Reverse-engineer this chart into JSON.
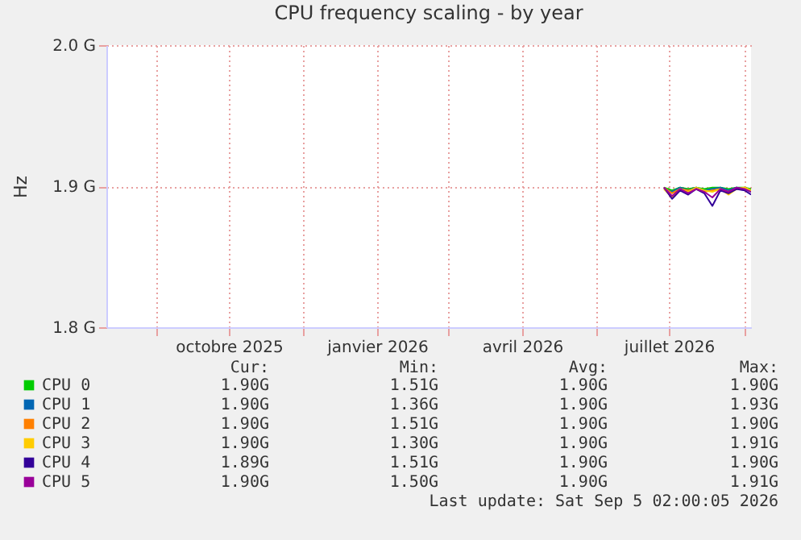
{
  "chart_data": {
    "type": "line",
    "title": "CPU frequency scaling - by year",
    "ylabel": "Hz",
    "x": [
      "2026-07-13",
      "2026-07-18",
      "2026-07-23",
      "2026-07-28",
      "2026-08-02",
      "2026-08-07",
      "2026-08-12",
      "2026-08-17",
      "2026-08-22",
      "2026-08-27",
      "2026-09-01",
      "2026-09-05"
    ],
    "xlim": [
      "2025-08-01",
      "2026-09-05"
    ],
    "xticks": [
      {
        "value": "2025-09-01",
        "label": null
      },
      {
        "value": "2025-10-16",
        "label": "octobre 2025"
      },
      {
        "value": "2025-12-01",
        "label": null
      },
      {
        "value": "2026-01-16",
        "label": "janvier 2026"
      },
      {
        "value": "2026-03-01",
        "label": null
      },
      {
        "value": "2026-04-16",
        "label": "avril 2026"
      },
      {
        "value": "2026-06-01",
        "label": null
      },
      {
        "value": "2026-07-16",
        "label": "juillet 2026"
      },
      {
        "value": "2026-09-01",
        "label": null
      }
    ],
    "ylim": [
      1.8,
      2.0
    ],
    "yticks": [
      {
        "value": 1.8,
        "label": "1.8 G"
      },
      {
        "value": 1.9,
        "label": "1.9 G"
      },
      {
        "value": 2.0,
        "label": "2.0 G"
      }
    ],
    "grid": true,
    "legend": "bottom",
    "series": [
      {
        "name": "CPU 0",
        "color": "#00cc00",
        "values": [
          1.899,
          1.897,
          1.899,
          1.898,
          1.899,
          1.898,
          1.899,
          1.899,
          1.898,
          1.899,
          1.899,
          1.898
        ]
      },
      {
        "name": "CPU 1",
        "color": "#0066b3",
        "values": [
          1.898,
          1.896,
          1.899,
          1.897,
          1.899,
          1.897,
          1.898,
          1.899,
          1.897,
          1.899,
          1.898,
          1.896
        ]
      },
      {
        "name": "CPU 2",
        "color": "#ff8000",
        "values": [
          1.899,
          1.895,
          1.898,
          1.897,
          1.898,
          1.896,
          1.897,
          1.898,
          1.896,
          1.898,
          1.899,
          1.897
        ]
      },
      {
        "name": "CPU 3",
        "color": "#ffcc00",
        "values": [
          1.898,
          1.892,
          1.898,
          1.896,
          1.899,
          1.897,
          1.896,
          1.898,
          1.894,
          1.898,
          1.899,
          1.897
        ]
      },
      {
        "name": "CPU 4",
        "color": "#330099",
        "values": [
          1.899,
          1.891,
          1.897,
          1.894,
          1.898,
          1.895,
          1.886,
          1.897,
          1.895,
          1.898,
          1.897,
          1.894
        ]
      },
      {
        "name": "CPU 5",
        "color": "#990099",
        "values": [
          1.899,
          1.893,
          1.898,
          1.895,
          1.898,
          1.896,
          1.892,
          1.898,
          1.896,
          1.899,
          1.898,
          1.896
        ]
      }
    ],
    "annotations": [
      "Cur:",
      "Min:",
      "Avg:",
      "Max:",
      "1.90G",
      "1.51G",
      "1.90G",
      "1.90G",
      "1.90G",
      "1.36G",
      "1.90G",
      "1.93G",
      "1.90G",
      "1.51G",
      "1.90G",
      "1.90G",
      "1.90G",
      "1.30G",
      "1.90G",
      "1.91G",
      "1.89G",
      "1.51G",
      "1.90G",
      "1.90G",
      "1.90G",
      "1.50G",
      "1.90G",
      "1.91G",
      "Last update: Sat Sep  5 02:00:05 2026"
    ]
  }
}
